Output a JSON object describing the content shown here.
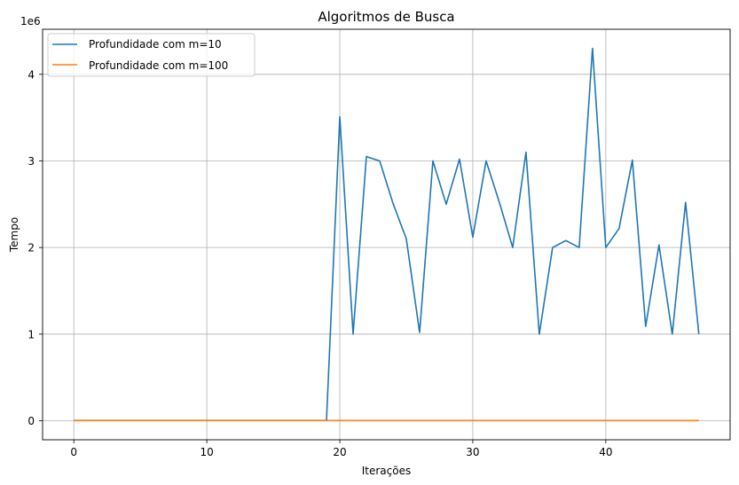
{
  "chart_data": {
    "type": "line",
    "title": "Algoritmos de Busca",
    "xlabel": "Iterações",
    "ylabel": "Tempo",
    "y_offset_text": "1e6",
    "xlim": [
      -2.35,
      49.35
    ],
    "ylim": [
      -0.22,
      4.52
    ],
    "xticks": [
      0,
      10,
      20,
      30,
      40
    ],
    "xtick_labels": [
      "0",
      "10",
      "20",
      "30",
      "40"
    ],
    "yticks": [
      0,
      1,
      2,
      3,
      4
    ],
    "ytick_labels": [
      "0",
      "1",
      "2",
      "3",
      "4"
    ],
    "grid": true,
    "legend_position": "top-left",
    "series": [
      {
        "name": "Profundidade com m=10",
        "color": "#1f77b4",
        "x": [
          0,
          1,
          2,
          3,
          4,
          5,
          6,
          7,
          8,
          9,
          10,
          11,
          12,
          13,
          14,
          15,
          16,
          17,
          18,
          19,
          20,
          21,
          22,
          23,
          24,
          25,
          26,
          27,
          28,
          29,
          30,
          31,
          32,
          33,
          34,
          35,
          36,
          37,
          38,
          39,
          40,
          41,
          42,
          43,
          44,
          45,
          46,
          47
        ],
        "values": [
          0.003,
          0.003,
          0.003,
          0.003,
          0.003,
          0.003,
          0.003,
          0.003,
          0.003,
          0.003,
          0.003,
          0.003,
          0.003,
          0.003,
          0.003,
          0.003,
          0.003,
          0.003,
          0.003,
          0.003,
          3.51,
          1.0,
          3.05,
          3.0,
          2.51,
          2.1,
          1.02,
          3.0,
          2.5,
          3.02,
          2.12,
          3.0,
          2.52,
          2.0,
          3.1,
          1.0,
          2.0,
          2.08,
          2.0,
          4.3,
          2.0,
          2.22,
          3.01,
          1.09,
          2.03,
          1.0,
          2.52,
          1.0
        ]
      },
      {
        "name": "Profundidade com m=100",
        "color": "#ff7f0e",
        "x": [
          0,
          1,
          2,
          3,
          4,
          5,
          6,
          7,
          8,
          9,
          10,
          11,
          12,
          13,
          14,
          15,
          16,
          17,
          18,
          19,
          20,
          21,
          22,
          23,
          24,
          25,
          26,
          27,
          28,
          29,
          30,
          31,
          32,
          33,
          34,
          35,
          36,
          37,
          38,
          39,
          40,
          41,
          42,
          43,
          44,
          45,
          46,
          47
        ],
        "values": [
          0.002,
          0.002,
          0.002,
          0.002,
          0.002,
          0.002,
          0.002,
          0.002,
          0.002,
          0.002,
          0.002,
          0.002,
          0.002,
          0.002,
          0.002,
          0.002,
          0.002,
          0.002,
          0.002,
          0.002,
          0.002,
          0.002,
          0.002,
          0.002,
          0.002,
          0.002,
          0.002,
          0.002,
          0.002,
          0.002,
          0.002,
          0.002,
          0.002,
          0.002,
          0.002,
          0.002,
          0.002,
          0.002,
          0.002,
          0.002,
          0.002,
          0.002,
          0.002,
          0.002,
          0.002,
          0.002,
          0.002,
          0.002
        ]
      }
    ]
  }
}
